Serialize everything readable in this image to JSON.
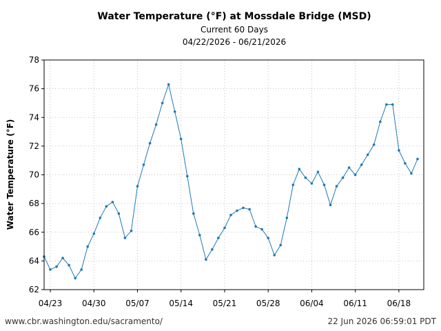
{
  "chart_data": {
    "type": "line",
    "title": "Water Temperature (°F) at Mossdale Bridge (MSD)",
    "subtitle": "Current 60 Days",
    "date_range": "04/22/2026 - 06/21/2026",
    "xlabel": "",
    "ylabel": "Water Temperature (°F)",
    "ylim": [
      62,
      78
    ],
    "y_ticks": [
      62,
      64,
      66,
      68,
      70,
      72,
      74,
      76,
      78
    ],
    "x_range": [
      "2026-04-22",
      "2026-06-22"
    ],
    "x_ticks": [
      {
        "date": "2026-04-23",
        "label": "04/23"
      },
      {
        "date": "2026-04-30",
        "label": "04/30"
      },
      {
        "date": "2026-05-07",
        "label": "05/07"
      },
      {
        "date": "2026-05-14",
        "label": "05/14"
      },
      {
        "date": "2026-05-21",
        "label": "05/21"
      },
      {
        "date": "2026-05-28",
        "label": "05/28"
      },
      {
        "date": "2026-06-04",
        "label": "06/04"
      },
      {
        "date": "2026-06-11",
        "label": "06/11"
      },
      {
        "date": "2026-06-18",
        "label": "06/18"
      }
    ],
    "grid": true,
    "line_color": "#1f77b4",
    "series": [
      {
        "x": [
          "2026-04-22",
          "2026-04-23",
          "2026-04-24",
          "2026-04-25",
          "2026-04-26",
          "2026-04-27",
          "2026-04-28",
          "2026-04-29",
          "2026-04-30",
          "2026-05-01",
          "2026-05-02",
          "2026-05-03",
          "2026-05-04",
          "2026-05-05",
          "2026-05-06",
          "2026-05-07",
          "2026-05-08",
          "2026-05-09",
          "2026-05-10",
          "2026-05-11",
          "2026-05-12",
          "2026-05-13",
          "2026-05-14",
          "2026-05-15",
          "2026-05-16",
          "2026-05-17",
          "2026-05-18",
          "2026-05-19",
          "2026-05-20",
          "2026-05-21",
          "2026-05-22",
          "2026-05-23",
          "2026-05-24",
          "2026-05-25",
          "2026-05-26",
          "2026-05-27",
          "2026-05-28",
          "2026-05-29",
          "2026-05-30",
          "2026-05-31",
          "2026-06-01",
          "2026-06-02",
          "2026-06-03",
          "2026-06-04",
          "2026-06-05",
          "2026-06-06",
          "2026-06-07",
          "2026-06-08",
          "2026-06-09",
          "2026-06-10",
          "2026-06-11",
          "2026-06-12",
          "2026-06-13",
          "2026-06-14",
          "2026-06-15",
          "2026-06-16",
          "2026-06-17",
          "2026-06-18",
          "2026-06-19",
          "2026-06-20",
          "2026-06-21"
        ],
        "values": [
          64.3,
          63.4,
          63.6,
          64.2,
          63.7,
          62.8,
          63.4,
          65.0,
          65.9,
          67.0,
          67.8,
          68.1,
          67.3,
          65.6,
          66.1,
          69.2,
          70.7,
          72.2,
          73.5,
          75.0,
          76.3,
          74.4,
          72.5,
          69.9,
          67.3,
          65.8,
          64.1,
          64.8,
          65.6,
          66.3,
          67.2,
          67.5,
          67.7,
          67.6,
          66.4,
          66.2,
          65.6,
          64.4,
          65.1,
          67.0,
          69.3,
          70.4,
          69.8,
          69.4,
          70.2,
          69.3,
          67.9,
          69.2,
          69.8,
          70.5,
          70.0,
          70.7,
          71.4,
          72.1,
          73.7,
          74.9,
          74.9,
          71.7,
          70.8,
          70.1,
          71.1
        ]
      }
    ]
  },
  "footer": {
    "source_url": "www.cbr.washington.edu/sacramento/",
    "timestamp": "22 Jun 2026 06:59:01 PDT"
  }
}
